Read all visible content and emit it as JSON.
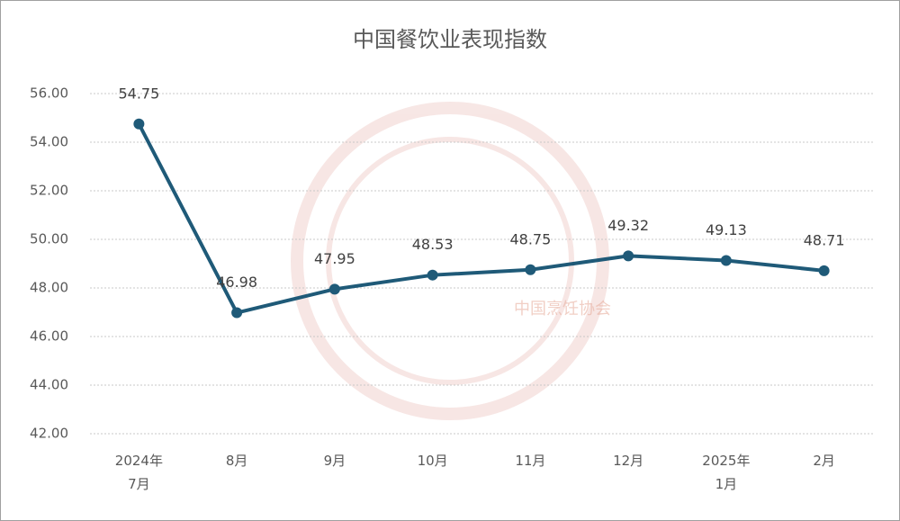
{
  "chart_data": {
    "type": "line",
    "title": "中国餐饮业表现指数",
    "categories": [
      "2024年\n7月",
      "8月",
      "9月",
      "10月",
      "11月",
      "12月",
      "2025年\n1月",
      "2月"
    ],
    "series": [
      {
        "name": "中国餐饮业表现指数",
        "color": "#1f5a78",
        "values": [
          54.75,
          46.98,
          47.95,
          48.53,
          48.75,
          49.32,
          49.13,
          48.71
        ]
      }
    ],
    "ylim": [
      42,
      56
    ],
    "yticks": [
      {
        "value": 42,
        "label": "42.00"
      },
      {
        "value": 44,
        "label": "44.00"
      },
      {
        "value": 46,
        "label": "46.00"
      },
      {
        "value": 48,
        "label": "48.00"
      },
      {
        "value": 50,
        "label": "50.00"
      },
      {
        "value": 52,
        "label": "52.00"
      },
      {
        "value": 54,
        "label": "54.00"
      },
      {
        "value": 56,
        "label": "56.00"
      }
    ],
    "grid": true,
    "watermark": "中国烹饪协会"
  }
}
